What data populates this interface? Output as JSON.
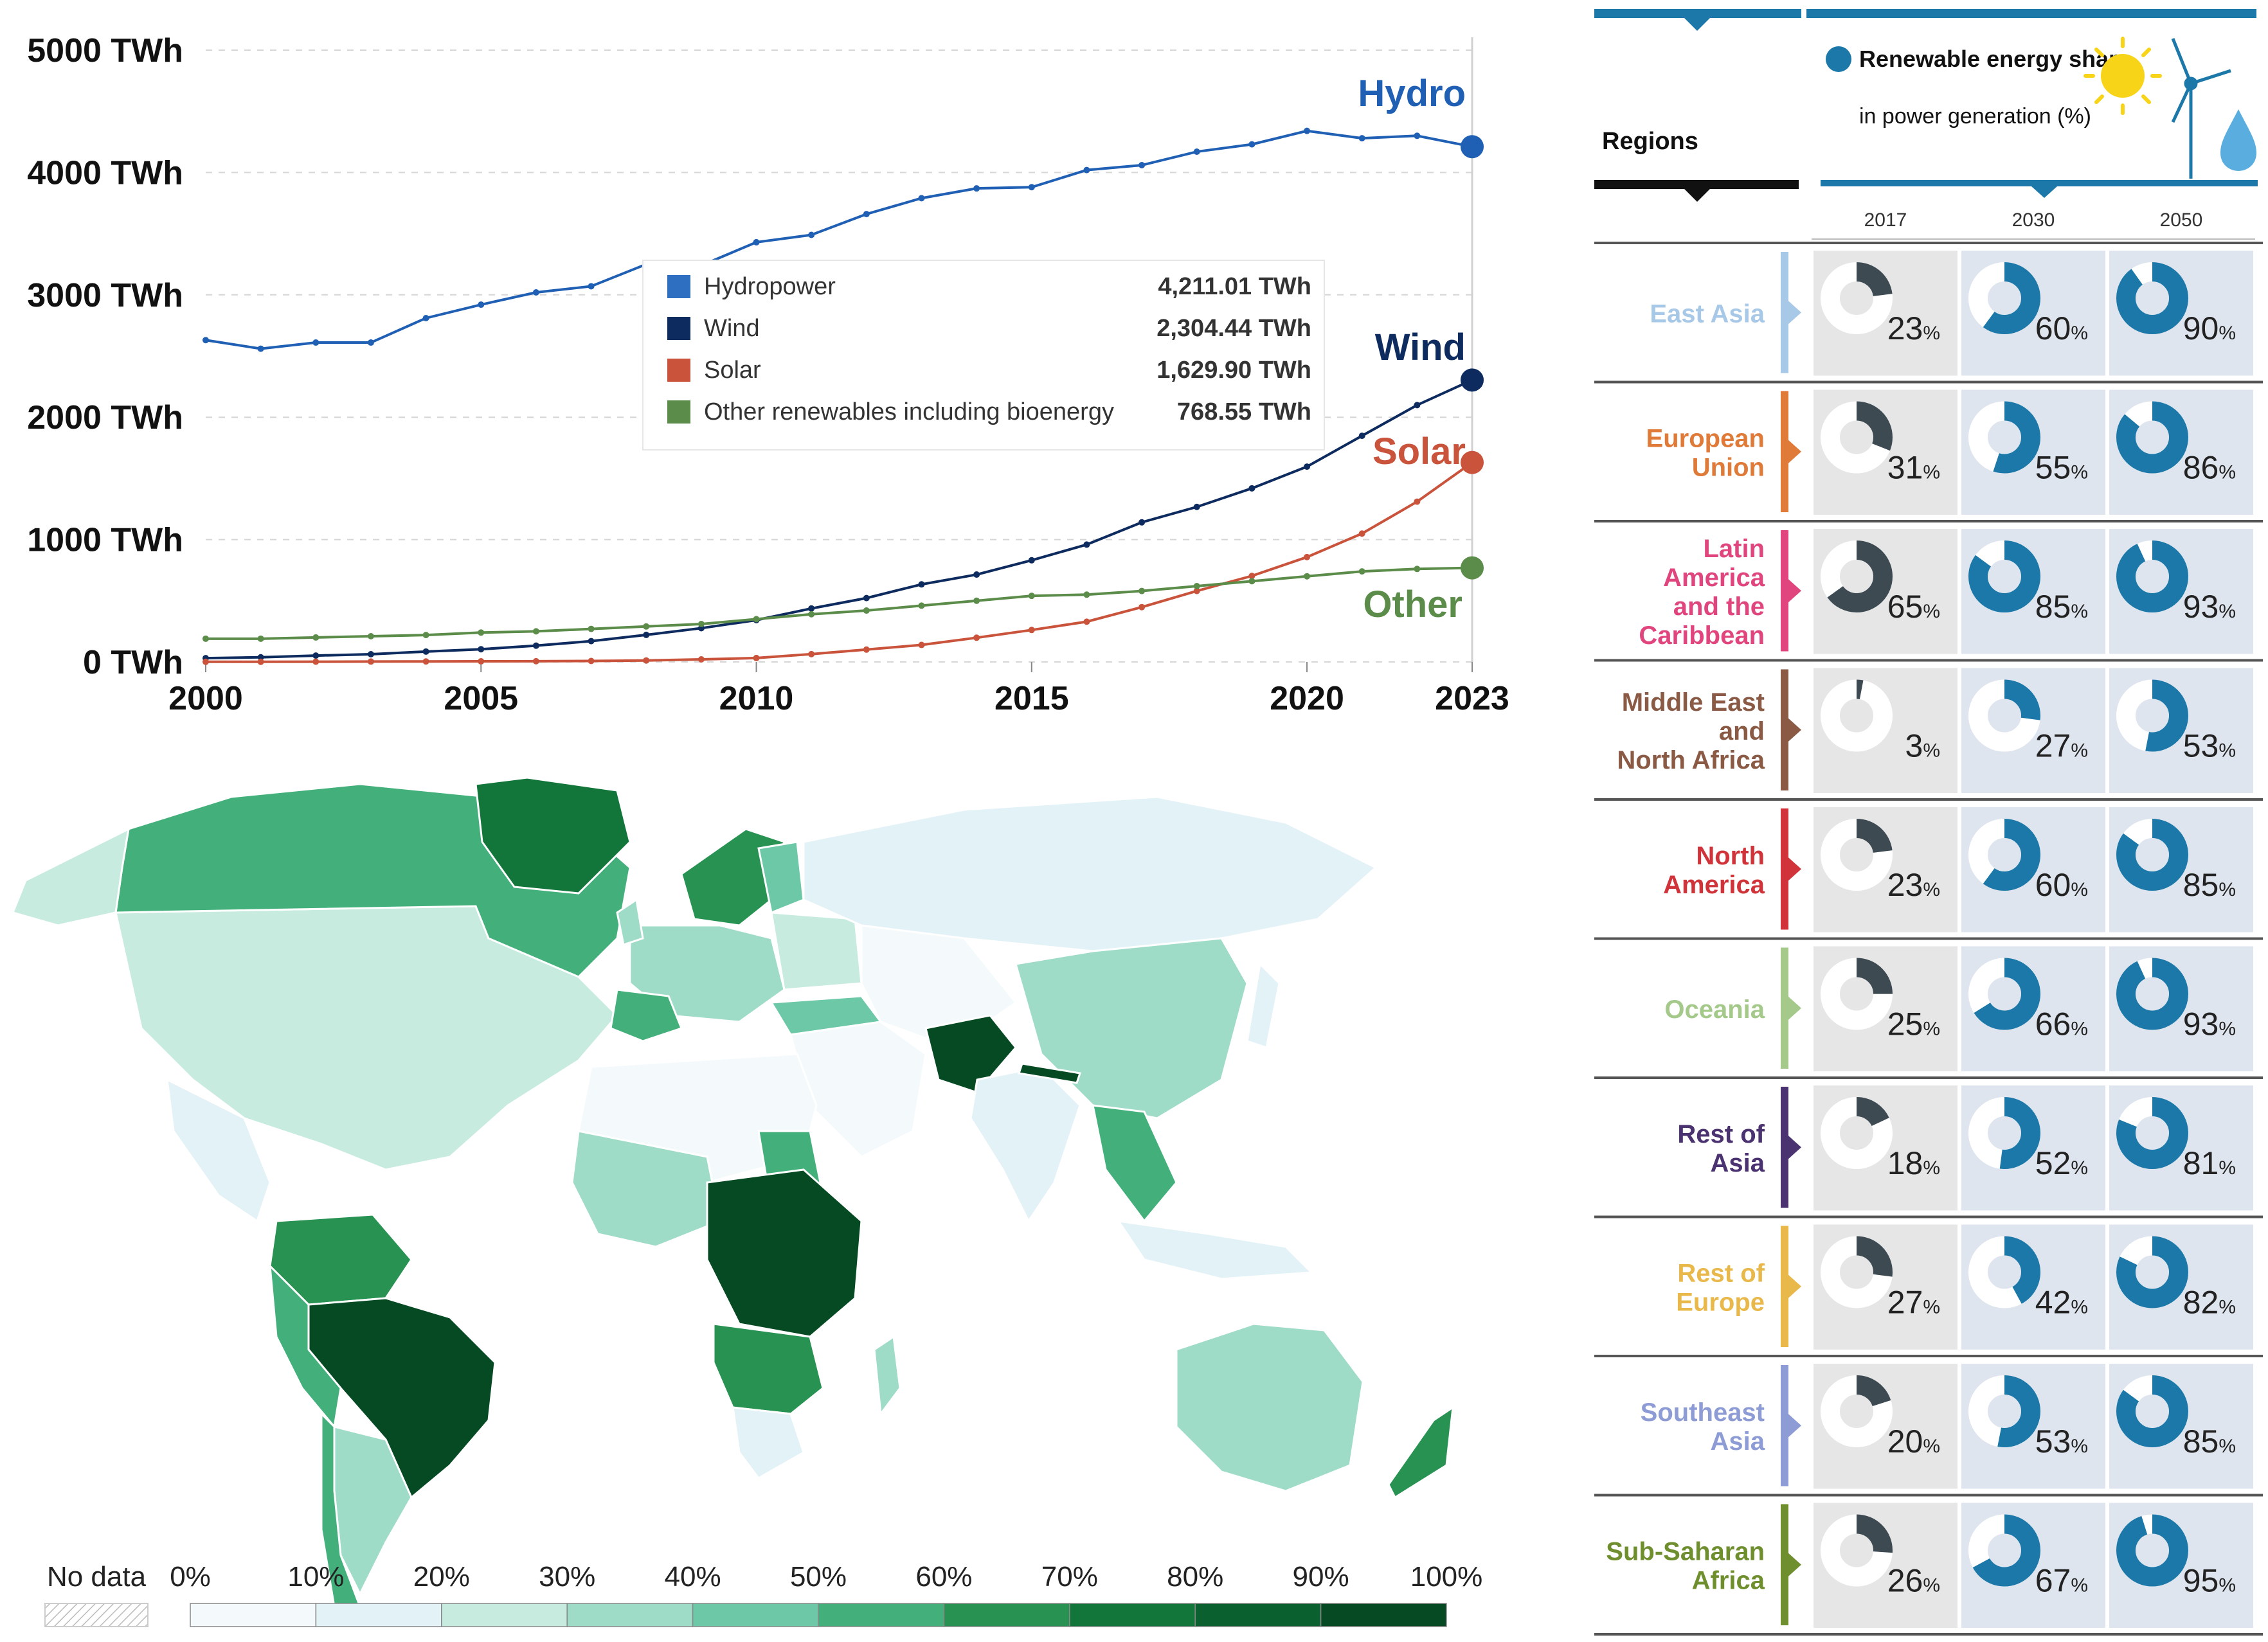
{
  "chart_data": [
    {
      "type": "line",
      "x": [
        2000,
        2001,
        2002,
        2003,
        2004,
        2005,
        2006,
        2007,
        2008,
        2009,
        2010,
        2011,
        2012,
        2013,
        2014,
        2015,
        2016,
        2017,
        2018,
        2019,
        2020,
        2021,
        2022,
        2023
      ],
      "x_ticks": [
        "2000",
        "2005",
        "2010",
        "2015",
        "2020",
        "2023"
      ],
      "y_ticks": [
        "0 TWh",
        "1000 TWh",
        "2000 TWh",
        "3000 TWh",
        "4000 TWh",
        "5000 TWh"
      ],
      "ylim": [
        0,
        5000
      ],
      "series": [
        {
          "name": "Hydro",
          "color": "#1f5fb4",
          "values": [
            2630,
            2560,
            2610,
            2610,
            2810,
            2920,
            3020,
            3070,
            3250,
            3240,
            3430,
            3490,
            3660,
            3790,
            3870,
            3880,
            4020,
            4060,
            4170,
            4230,
            4340,
            4280,
            4300,
            4211
          ]
        },
        {
          "name": "Wind",
          "color": "#0d2b5e",
          "values": [
            31,
            38,
            52,
            63,
            85,
            104,
            133,
            170,
            221,
            276,
            342,
            437,
            522,
            634,
            714,
            831,
            959,
            1141,
            1267,
            1419,
            1596,
            1848,
            2099,
            2304
          ]
        },
        {
          "name": "Solar",
          "color": "#c9533b",
          "values": [
            1,
            1,
            2,
            3,
            4,
            5,
            6,
            8,
            12,
            21,
            32,
            64,
            101,
            139,
            198,
            261,
            329,
            448,
            580,
            703,
            857,
            1049,
            1310,
            1630
          ]
        },
        {
          "name": "Other",
          "color": "#5b8c4a",
          "values": [
            190,
            190,
            200,
            210,
            220,
            240,
            250,
            270,
            290,
            310,
            350,
            390,
            420,
            460,
            500,
            540,
            550,
            580,
            620,
            660,
            700,
            740,
            760,
            769
          ]
        }
      ],
      "legend": {
        "position": "center",
        "items": [
          {
            "label": "Hydropower",
            "value": "4,211.01 TWh",
            "color": "#2f6fc2"
          },
          {
            "label": "Wind",
            "value": "2,304.44 TWh",
            "color": "#0d2b5e"
          },
          {
            "label": "Solar",
            "value": "1,629.90 TWh",
            "color": "#c9533b"
          },
          {
            "label": "Other renewables including bioenergy",
            "value": "768.55 TWh",
            "color": "#5b8c4a"
          }
        ]
      }
    },
    {
      "type": "heatmap",
      "legend_labels": [
        "No data",
        "0%",
        "10%",
        "20%",
        "30%",
        "40%",
        "50%",
        "60%",
        "70%",
        "80%",
        "90%",
        "100%"
      ],
      "colors": [
        "#f4fafb",
        "#e3f2f7",
        "#c8ebe0",
        "#9fdcc7",
        "#6cc8a6",
        "#43b07c",
        "#279252",
        "#12763a",
        "#0b6030",
        "#064a24"
      ]
    },
    {
      "type": "table",
      "header": {
        "regions": "Regions",
        "title_bold": "Renewable energy share",
        "title_rest": "in power generation (%)"
      },
      "columns": [
        "2017",
        "2030",
        "2050"
      ],
      "rows": [
        {
          "lines": [
            "East Asia"
          ],
          "color": "#a8c8e8",
          "values": [
            23,
            60,
            90
          ]
        },
        {
          "lines": [
            "European",
            "Union"
          ],
          "color": "#e07a38",
          "values": [
            31,
            55,
            86
          ]
        },
        {
          "lines": [
            "Latin",
            "America",
            "and the",
            "Caribbean"
          ],
          "color": "#e0457e",
          "values": [
            65,
            85,
            93
          ]
        },
        {
          "lines": [
            "Middle East",
            "and",
            "North Africa"
          ],
          "color": "#8a5a45",
          "values": [
            3,
            27,
            53
          ]
        },
        {
          "lines": [
            "North",
            "America"
          ],
          "color": "#d0333a",
          "values": [
            23,
            60,
            85
          ]
        },
        {
          "lines": [
            "Oceania"
          ],
          "color": "#a4c98a",
          "values": [
            25,
            66,
            93
          ]
        },
        {
          "lines": [
            "Rest of",
            "Asia"
          ],
          "color": "#4b3270",
          "values": [
            18,
            52,
            81
          ]
        },
        {
          "lines": [
            "Rest of",
            "Europe"
          ],
          "color": "#e8b84a",
          "values": [
            27,
            42,
            82
          ]
        },
        {
          "lines": [
            "Southeast",
            "Asia"
          ],
          "color": "#8e9cd6",
          "values": [
            20,
            53,
            85
          ]
        },
        {
          "lines": [
            "Sub-Saharan",
            "Africa"
          ],
          "color": "#6f8f2f",
          "values": [
            26,
            67,
            95
          ]
        }
      ]
    }
  ]
}
